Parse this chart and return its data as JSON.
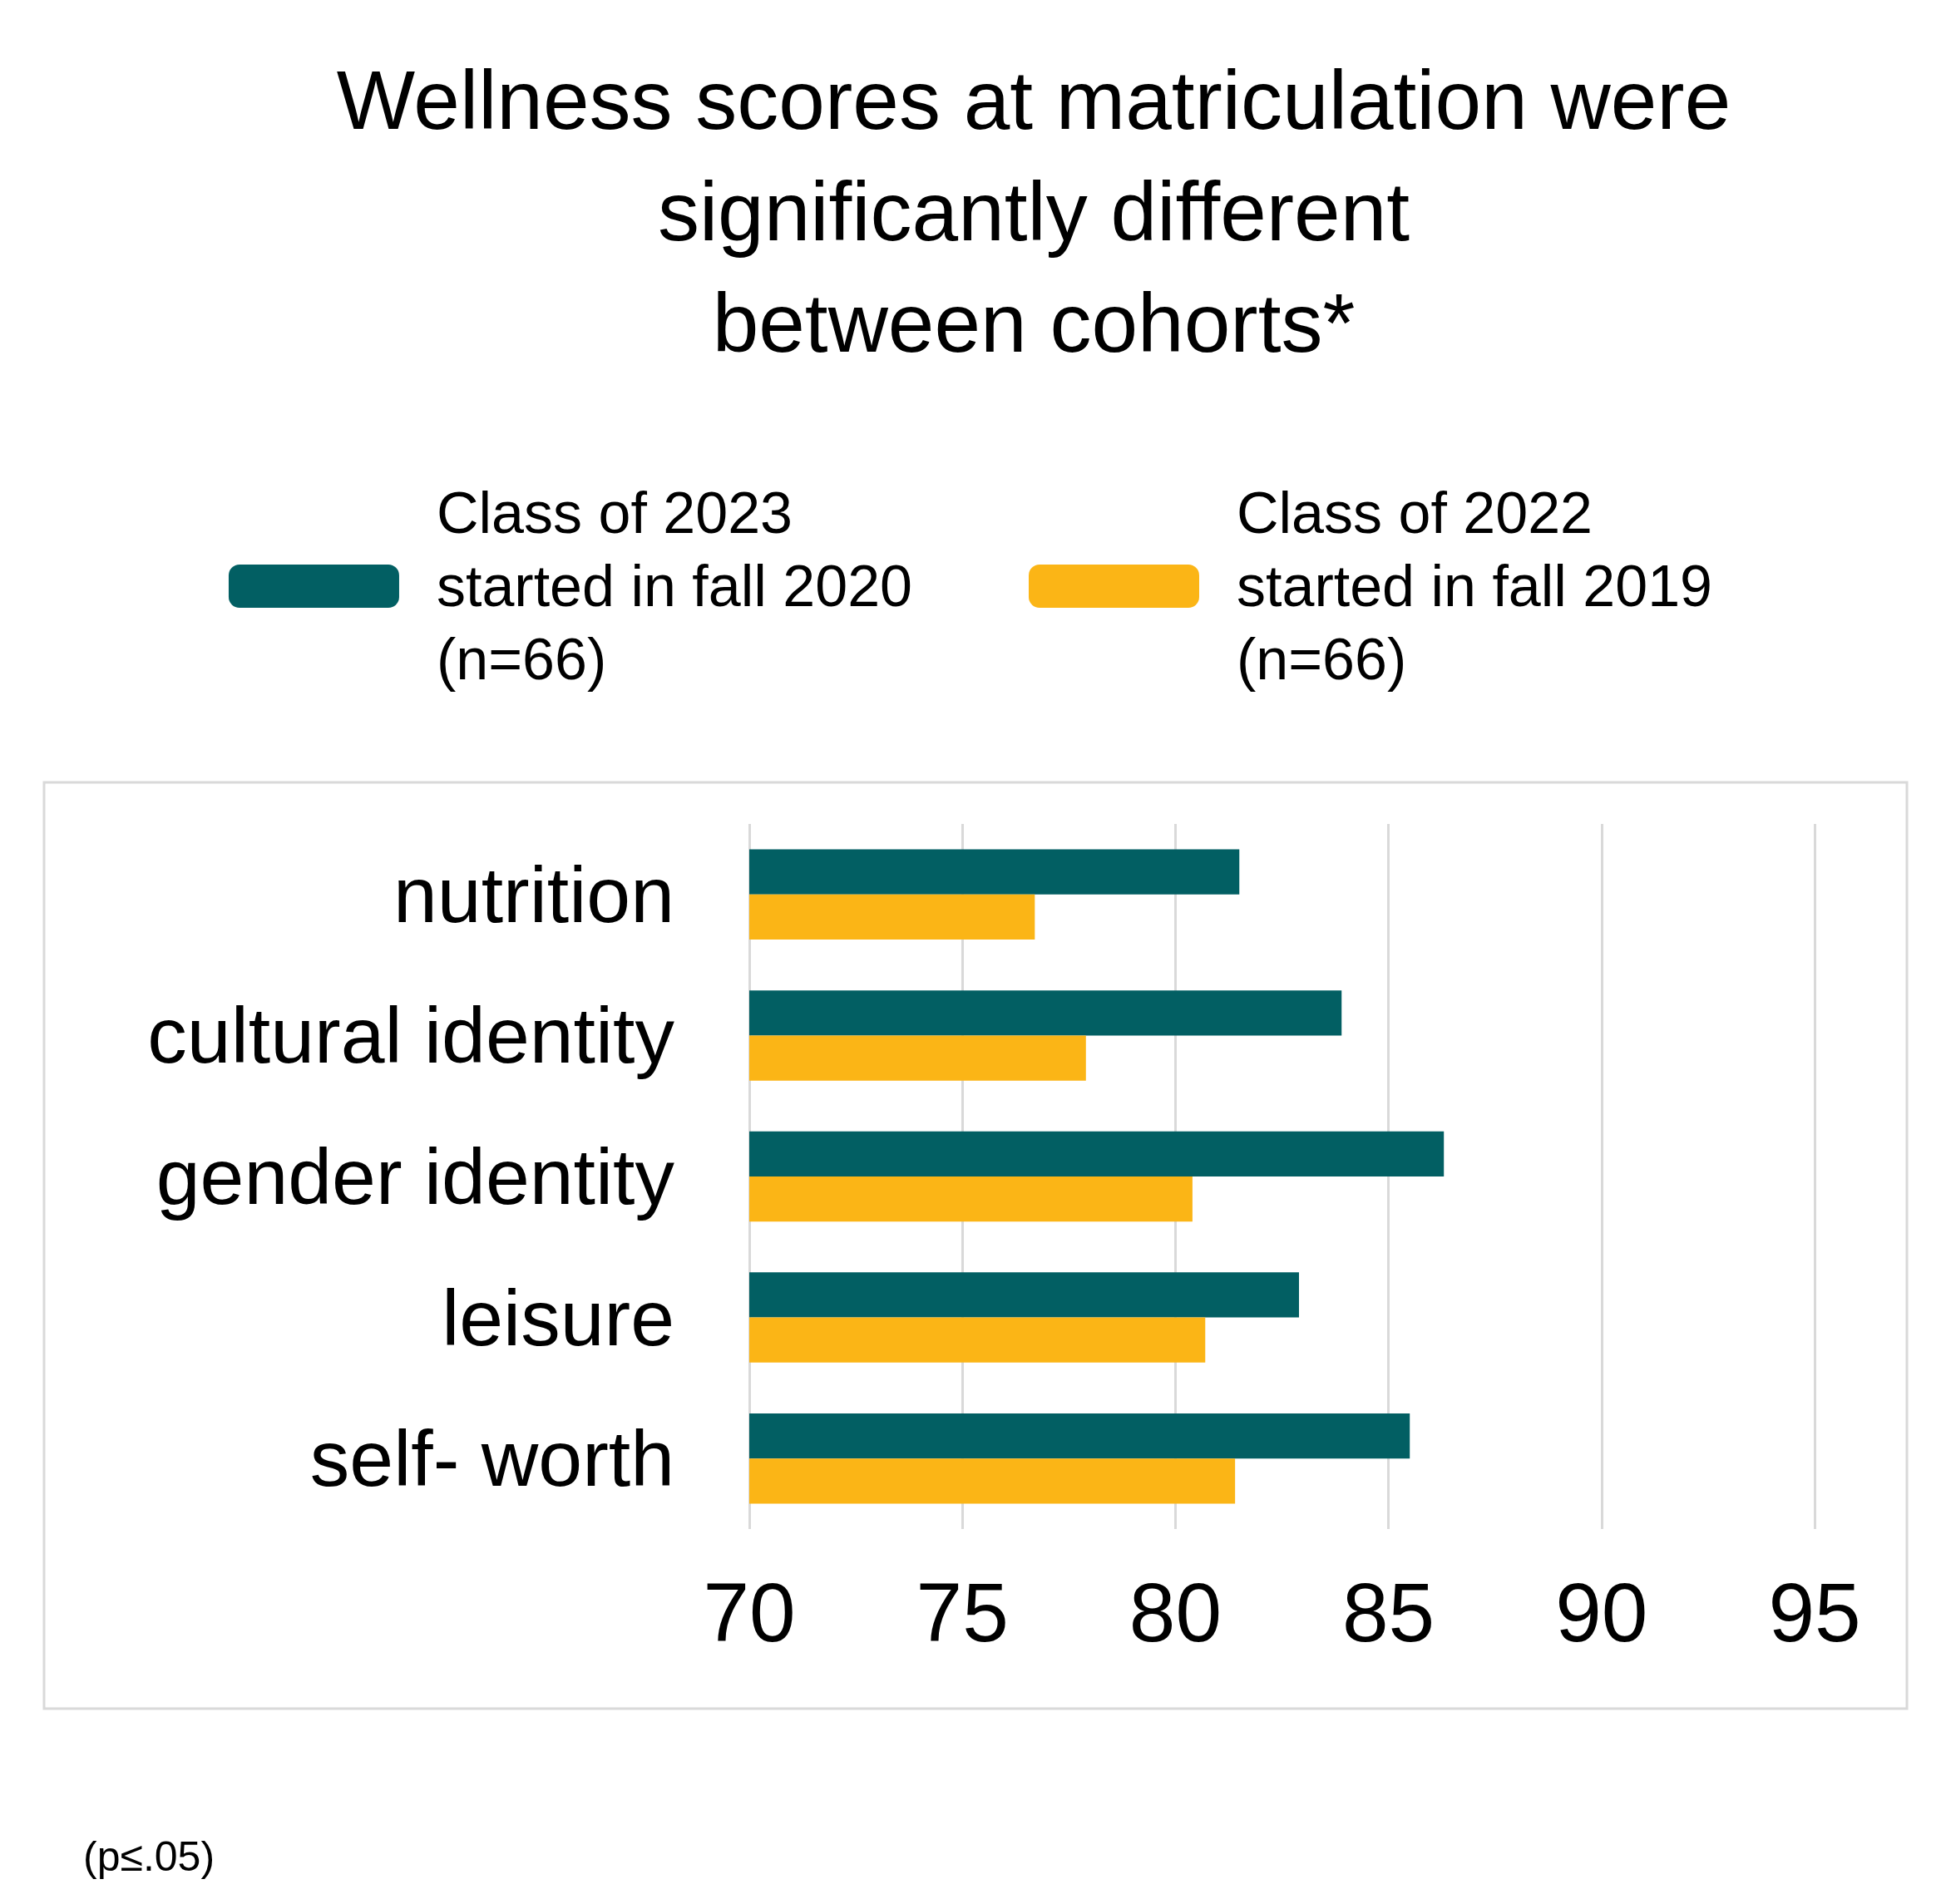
{
  "chart_data": {
    "type": "bar",
    "orientation": "horizontal",
    "title": "Wellness scores at matriculation were\nsignificantly different\nbetween cohorts*",
    "categories": [
      "nutrition",
      "cultural identity",
      "gender identity",
      "leisure",
      "self- worth"
    ],
    "series": [
      {
        "name": "Class of 2023\nstarted in fall 2020\n(n=66)",
        "color": "#025f63",
        "values": [
          81.5,
          83.9,
          86.3,
          82.9,
          85.5
        ]
      },
      {
        "name": "Class of 2022\nstarted in fall 2019\n(n=66)",
        "color": "#fbb516",
        "values": [
          76.7,
          77.9,
          80.4,
          80.7,
          81.4
        ]
      }
    ],
    "xlim": [
      70,
      95
    ],
    "xticks": [
      70,
      75,
      80,
      85,
      90,
      95
    ],
    "grid": "x",
    "legend": "top",
    "annotations": [
      "(p≤.05)"
    ]
  }
}
